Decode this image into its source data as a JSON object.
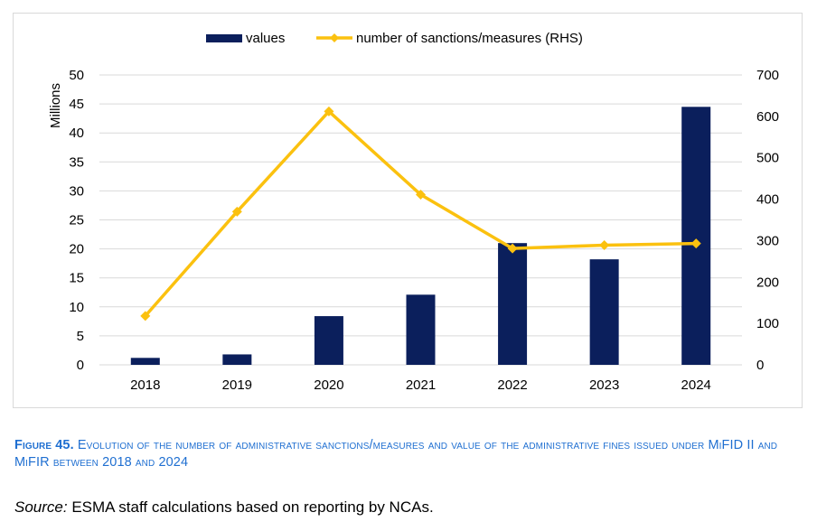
{
  "chart_data": {
    "type": "bar+line",
    "categories": [
      "2018",
      "2019",
      "2020",
      "2021",
      "2022",
      "2023",
      "2024"
    ],
    "series": [
      {
        "name": "values",
        "kind": "bar",
        "axis": "left",
        "color": "#0b1f5c",
        "values": [
          1.2,
          1.8,
          8.4,
          12.1,
          21.0,
          18.2,
          44.5
        ]
      },
      {
        "name": "number of sanctions/measures (RHS)",
        "kind": "line",
        "axis": "right",
        "color": "#fbc10f",
        "values": [
          118,
          370,
          612,
          411,
          281,
          289,
          293
        ]
      }
    ],
    "ylabel": "Millions",
    "ylim": [
      0,
      50
    ],
    "yticks": [
      "0",
      "5",
      "10",
      "15",
      "20",
      "25",
      "30",
      "35",
      "40",
      "45",
      "50"
    ],
    "y2lim": [
      0,
      700
    ],
    "y2ticks": [
      "0",
      "100",
      "200",
      "300",
      "400",
      "500",
      "600",
      "700"
    ],
    "grid": true,
    "legend": "top-center"
  },
  "caption": {
    "label": "Figure 45.",
    "text": "Evolution of the number of administrative sanctions/measures and value of the administrative fines issued under MiFID II and MiFIR between 2018 and 2024"
  },
  "source": {
    "label": "Source:",
    "text": "ESMA staff calculations based on reporting by NCAs."
  }
}
